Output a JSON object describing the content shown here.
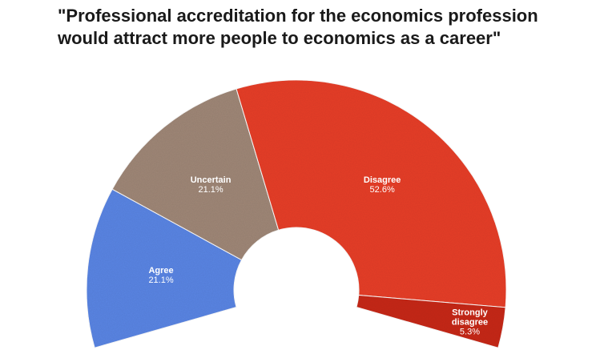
{
  "title_lines": [
    "\"Professional accreditation for the economics profession",
    "would attract more people to economics as a career\""
  ],
  "chart_data": {
    "type": "pie",
    "variant": "semi-donut",
    "title": "\"Professional accreditation for the economics profession would attract more people to economics as a career\"",
    "slices": [
      {
        "label": "Agree",
        "value": 21.1,
        "display": "21.1%",
        "color": "#5b86e5"
      },
      {
        "label": "Uncertain",
        "value": 21.1,
        "display": "21.1%",
        "color": "#a08878"
      },
      {
        "label": "Disagree",
        "value": 52.6,
        "display": "52.6%",
        "color": "#e8402c"
      },
      {
        "label": "Strongly disagree",
        "value": 5.3,
        "display": "5.3%",
        "color": "#c8291b"
      }
    ],
    "legend": "none",
    "start_angle_deg": 196,
    "end_angle_deg": -16
  }
}
